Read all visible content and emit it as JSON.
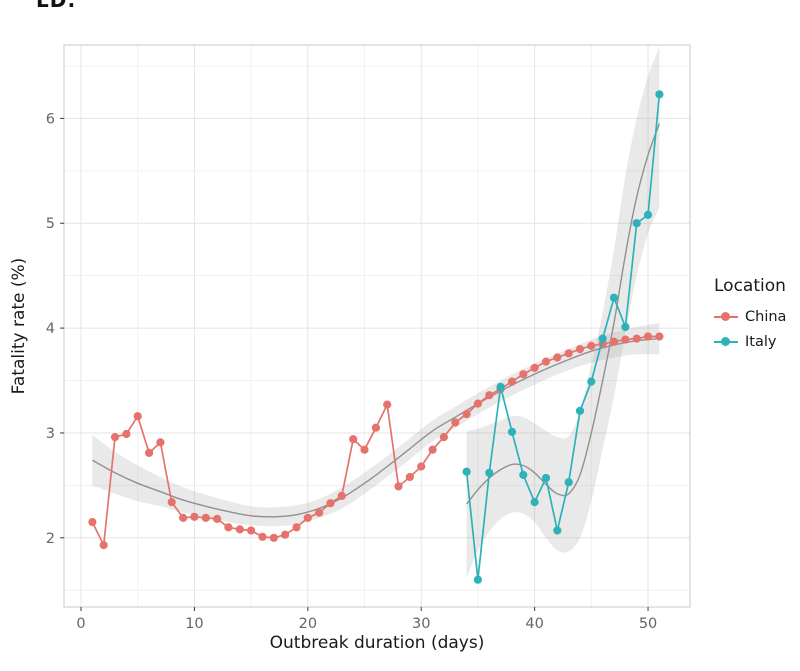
{
  "figure": {
    "cropped_title": "LD:",
    "x_axis": {
      "label": "Outbreak duration (days)"
    },
    "y_axis": {
      "label": "Fatality rate (%)"
    },
    "legend": {
      "title": "Location",
      "entries": [
        {
          "label": "China",
          "color": "#e5736c"
        },
        {
          "label": "Italy",
          "color": "#2eb2b9"
        }
      ]
    }
  },
  "chart_data": {
    "type": "line",
    "title": "",
    "xlabel": "Outbreak duration (days)",
    "ylabel": "Fatality rate (%)",
    "xlim": [
      -1.5,
      53.7
    ],
    "ylim": [
      1.34,
      6.7
    ],
    "x_ticks": [
      0,
      10,
      20,
      30,
      40,
      50
    ],
    "x_minor_ticks": [
      5,
      15,
      25,
      35,
      45
    ],
    "y_ticks": [
      2,
      3,
      4,
      5,
      6
    ],
    "y_minor_ticks": [
      1.5,
      2.5,
      3.5,
      4.5,
      5.5,
      6.5
    ],
    "grid": true,
    "legend_position": "right",
    "style": {
      "major_grid_color": "#e4e4e4",
      "minor_grid_color": "#f1f1f1",
      "panel_border_color": "#c8c8c8",
      "tick_mark_color": "#3a3a3a",
      "tick_label_color": "#666666",
      "smooth_line_color": "#909090",
      "ribbon_color": "#999999",
      "ribbon_opacity": 0.22
    },
    "series": [
      {
        "name": "China",
        "color": "#e5736c",
        "x": [
          1,
          2,
          3,
          4,
          5,
          6,
          7,
          8,
          9,
          10,
          11,
          12,
          13,
          14,
          15,
          16,
          17,
          18,
          19,
          20,
          21,
          22,
          23,
          24,
          25,
          26,
          27,
          28,
          29,
          30,
          31,
          32,
          33,
          34,
          35,
          36,
          37,
          38,
          39,
          40,
          41,
          42,
          43,
          44,
          45,
          46,
          47,
          48,
          49,
          50,
          51
        ],
        "y": [
          2.15,
          1.93,
          2.96,
          2.99,
          3.16,
          2.81,
          2.91,
          2.34,
          2.19,
          2.2,
          2.19,
          2.18,
          2.1,
          2.08,
          2.07,
          2.01,
          2.0,
          2.03,
          2.1,
          2.19,
          2.24,
          2.33,
          2.4,
          2.94,
          2.84,
          3.05,
          3.27,
          2.49,
          2.58,
          2.68,
          2.84,
          2.96,
          3.1,
          3.18,
          3.28,
          3.36,
          3.42,
          3.49,
          3.56,
          3.62,
          3.68,
          3.72,
          3.76,
          3.8,
          3.83,
          3.85,
          3.87,
          3.89,
          3.9,
          3.92,
          3.92
        ]
      },
      {
        "name": "Italy",
        "color": "#2eb2b9",
        "x": [
          34,
          35,
          36,
          37,
          38,
          39,
          40,
          41,
          42,
          43,
          44,
          45,
          46,
          47,
          48,
          49,
          50,
          51
        ],
        "y": [
          2.63,
          1.6,
          2.62,
          3.44,
          3.01,
          2.6,
          2.34,
          2.57,
          2.07,
          2.53,
          3.21,
          3.49,
          3.9,
          4.29,
          4.01,
          5.0,
          5.08,
          6.23
        ]
      }
    ],
    "smoothers": [
      {
        "name": "China",
        "x": [
          1,
          3,
          5,
          7,
          9,
          11,
          13,
          15,
          17,
          19,
          21,
          23,
          25,
          27,
          29,
          31,
          33,
          35,
          37,
          39,
          41,
          43,
          45,
          47,
          49,
          51
        ],
        "y": [
          2.74,
          2.62,
          2.52,
          2.44,
          2.36,
          2.3,
          2.25,
          2.21,
          2.2,
          2.22,
          2.28,
          2.38,
          2.52,
          2.68,
          2.85,
          3.02,
          3.15,
          3.28,
          3.4,
          3.51,
          3.61,
          3.7,
          3.78,
          3.84,
          3.88,
          3.9
        ],
        "lower": [
          2.5,
          2.42,
          2.35,
          2.3,
          2.24,
          2.19,
          2.15,
          2.12,
          2.11,
          2.13,
          2.19,
          2.28,
          2.42,
          2.58,
          2.75,
          2.92,
          3.05,
          3.18,
          3.3,
          3.41,
          3.51,
          3.6,
          3.67,
          3.72,
          3.75,
          3.75
        ],
        "upper": [
          2.98,
          2.82,
          2.69,
          2.58,
          2.48,
          2.41,
          2.35,
          2.3,
          2.29,
          2.31,
          2.37,
          2.48,
          2.62,
          2.78,
          2.95,
          3.12,
          3.25,
          3.38,
          3.5,
          3.61,
          3.71,
          3.8,
          3.89,
          3.96,
          4.01,
          4.05
        ]
      },
      {
        "name": "Italy",
        "x": [
          34,
          35,
          36,
          37,
          38,
          39,
          40,
          41,
          42,
          43,
          44,
          45,
          46,
          47,
          48,
          49,
          50,
          51
        ],
        "y": [
          2.32,
          2.46,
          2.57,
          2.65,
          2.7,
          2.69,
          2.62,
          2.51,
          2.42,
          2.42,
          2.6,
          3.0,
          3.5,
          4.05,
          4.7,
          5.25,
          5.65,
          5.95
        ],
        "lower": [
          1.62,
          1.88,
          2.06,
          2.18,
          2.24,
          2.23,
          2.15,
          2.0,
          1.88,
          1.87,
          2.0,
          2.35,
          2.85,
          3.35,
          3.95,
          4.5,
          4.9,
          5.15
        ],
        "upper": [
          3.02,
          3.04,
          3.08,
          3.12,
          3.16,
          3.15,
          3.09,
          3.02,
          2.96,
          2.97,
          3.2,
          3.65,
          4.15,
          4.75,
          5.45,
          6.0,
          6.4,
          6.68
        ]
      }
    ]
  }
}
